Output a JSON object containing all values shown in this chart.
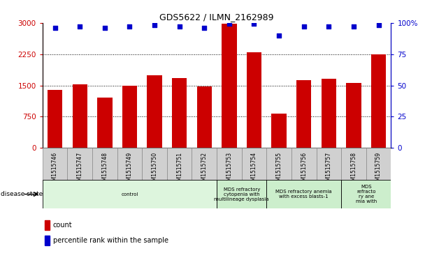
{
  "title": "GDS5622 / ILMN_2162989",
  "samples": [
    "GSM1515746",
    "GSM1515747",
    "GSM1515748",
    "GSM1515749",
    "GSM1515750",
    "GSM1515751",
    "GSM1515752",
    "GSM1515753",
    "GSM1515754",
    "GSM1515755",
    "GSM1515756",
    "GSM1515757",
    "GSM1515758",
    "GSM1515759"
  ],
  "counts": [
    1400,
    1530,
    1200,
    1500,
    1750,
    1680,
    1480,
    2980,
    2300,
    820,
    1620,
    1660,
    1560,
    2250
  ],
  "percentiles": [
    96,
    97,
    96,
    97,
    98,
    97,
    96,
    99,
    99,
    90,
    97,
    97,
    97,
    98
  ],
  "bar_color": "#cc0000",
  "dot_color": "#0000cc",
  "ylim_left": [
    0,
    3000
  ],
  "ylim_right": [
    0,
    100
  ],
  "yticks_left": [
    0,
    750,
    1500,
    2250,
    3000
  ],
  "ytick_labels_left": [
    "0",
    "750",
    "1500",
    "2250",
    "3000"
  ],
  "yticks_right": [
    0,
    25,
    50,
    75,
    100
  ],
  "ytick_labels_right": [
    "0",
    "25",
    "50",
    "75",
    "100%"
  ],
  "disease_groups": [
    {
      "label": "control",
      "start": 0,
      "end": 7,
      "color": "#ddf5dd"
    },
    {
      "label": "MDS refractory\ncytopenia with\nmultilineage dysplasia",
      "start": 7,
      "end": 9,
      "color": "#cceecc"
    },
    {
      "label": "MDS refractory anemia\nwith excess blasts-1",
      "start": 9,
      "end": 12,
      "color": "#cceecc"
    },
    {
      "label": "MDS\nrefracto\nry ane\nmia with",
      "start": 12,
      "end": 14,
      "color": "#cceecc"
    }
  ],
  "disease_state_label": "disease state",
  "legend_count_label": "count",
  "legend_pct_label": "percentile rank within the sample",
  "background_color": "#ffffff",
  "tick_label_color_left": "#cc0000",
  "tick_label_color_right": "#0000cc",
  "xtick_bg_color": "#d0d0d0"
}
